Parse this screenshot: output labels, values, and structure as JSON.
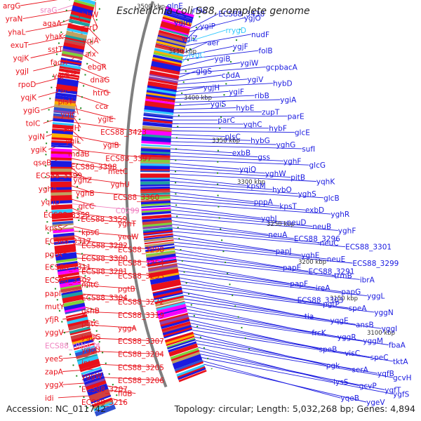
{
  "title": "Escherichia coli S88, complete genome",
  "footer": {
    "accession": "Accession: NC_011742",
    "summary": "Topology: circular; Length: 5,032,268 bp; Genes: 4,894"
  },
  "colors": {
    "background": "#ffffff",
    "reverse_strand": "#e8101a",
    "forward_strand": "#1a1ae0",
    "rna": "#f080c0",
    "trna_forward": "#30c8ff",
    "backbone": "#7f7f7f",
    "tick": "#1e8a1e"
  },
  "scale_ticks": [
    "3500 kbp",
    "3450 kbp",
    "3400 kbp",
    "3350 kbp",
    "3300 kbp",
    "3250 kbp",
    "3200 kbp",
    "3150 kbp",
    "3100 kbp"
  ],
  "left_labels": [
    {
      "text": "argG",
      "type": "gene"
    },
    {
      "text": "sraG",
      "type": "rna"
    },
    {
      "text": "yhbW",
      "type": "gene"
    },
    {
      "text": "yraN",
      "type": "gene"
    },
    {
      "text": "agaA",
      "type": "gene"
    },
    {
      "text": "garD",
      "type": "gene"
    },
    {
      "text": "yhaL",
      "type": "gene"
    },
    {
      "text": "yhaK",
      "type": "gene"
    },
    {
      "text": "yqjA",
      "type": "gene"
    },
    {
      "text": "exuT",
      "type": "gene"
    },
    {
      "text": "sstT",
      "type": "gene"
    },
    {
      "text": "alx",
      "type": "gene"
    },
    {
      "text": "yqjK",
      "type": "gene"
    },
    {
      "text": "fadH",
      "type": "gene"
    },
    {
      "text": "ebgR",
      "type": "gene"
    },
    {
      "text": "ygjI",
      "type": "gene"
    },
    {
      "text": "yqjG",
      "type": "gene"
    },
    {
      "text": "dnaG",
      "type": "gene"
    },
    {
      "text": "rpoD",
      "type": "gene"
    },
    {
      "text": "ygjE",
      "type": "gene"
    },
    {
      "text": "htrG",
      "type": "gene"
    },
    {
      "text": "yqjK",
      "type": "gene"
    },
    {
      "text": "plsY",
      "type": "gene"
    },
    {
      "text": "cca",
      "type": "gene"
    },
    {
      "text": "ygiG",
      "type": "gene"
    },
    {
      "text": "yqiC",
      "type": "gene"
    },
    {
      "text": "ygiE",
      "type": "gene"
    },
    {
      "text": "tolC",
      "type": "gene"
    },
    {
      "text": "yqiH",
      "type": "gene"
    },
    {
      "text": "ECS88_3423",
      "type": "gene"
    },
    {
      "text": "ygiN",
      "type": "gene"
    },
    {
      "text": "ygiL",
      "type": "gene"
    },
    {
      "text": "ygiB",
      "type": "gene"
    },
    {
      "text": "ygiK",
      "type": "gene"
    },
    {
      "text": "mdaB",
      "type": "gene"
    },
    {
      "text": "ECS88_3397",
      "type": "gene"
    },
    {
      "text": "qseB",
      "type": "gene"
    },
    {
      "text": "ECS88_3398",
      "type": "gene"
    },
    {
      "text": "metC",
      "type": "gene"
    },
    {
      "text": "ECS88_3399",
      "type": "gene"
    },
    {
      "text": "yghZ",
      "type": "gene"
    },
    {
      "text": "yghU",
      "type": "gene"
    },
    {
      "text": "yghA",
      "type": "gene"
    },
    {
      "text": "yghB",
      "type": "gene"
    },
    {
      "text": "ECS88_3360",
      "type": "gene"
    },
    {
      "text": "yqhD",
      "type": "gene"
    },
    {
      "text": "glcC",
      "type": "gene"
    },
    {
      "text": "C0299",
      "type": "rna"
    },
    {
      "text": "ECS88_3358",
      "type": "gene"
    },
    {
      "text": "ECS88_3359",
      "type": "gene"
    },
    {
      "text": "yghT",
      "type": "gene"
    },
    {
      "text": "kpsS",
      "type": "gene"
    },
    {
      "text": "kpsC",
      "type": "gene"
    },
    {
      "text": "yeeW",
      "type": "gene"
    },
    {
      "text": "ECS88_3317",
      "type": "gene"
    },
    {
      "text": "ECS88_3282",
      "type": "gene"
    },
    {
      "text": "ECS88_3298",
      "type": "gene"
    },
    {
      "text": "pgtA",
      "type": "gene"
    },
    {
      "text": "ECS88_3300",
      "type": "gene"
    },
    {
      "text": "ECS88_3254",
      "type": "gene"
    },
    {
      "text": "ECS88_3311",
      "type": "gene"
    },
    {
      "text": "ECS88_3281",
      "type": "gene"
    },
    {
      "text": "ECS88_3253",
      "type": "gene"
    },
    {
      "text": "ECS88_3302",
      "type": "gene"
    },
    {
      "text": "mltC",
      "type": "gene"
    },
    {
      "text": "pgtB",
      "type": "gene"
    },
    {
      "text": "papI",
      "type": "gene"
    },
    {
      "text": "ECS88_3304",
      "type": "gene"
    },
    {
      "text": "ECS88_3272",
      "type": "gene"
    },
    {
      "text": "mutY",
      "type": "gene"
    },
    {
      "text": "gshB",
      "type": "gene"
    },
    {
      "text": "ECS88_3319",
      "type": "gene"
    },
    {
      "text": "yfjR",
      "type": "gene"
    },
    {
      "text": "pgtC",
      "type": "gene"
    },
    {
      "text": "yggA",
      "type": "gene"
    },
    {
      "text": "yggV",
      "type": "gene"
    },
    {
      "text": "yggG",
      "type": "gene"
    },
    {
      "text": "ECS88_3307",
      "type": "gene"
    },
    {
      "text": "ECS88_tRNA34",
      "type": "rna"
    },
    {
      "text": "yggU",
      "type": "gene"
    },
    {
      "text": "ECS88_3204",
      "type": "gene"
    },
    {
      "text": "yeeS",
      "type": "gene"
    },
    {
      "text": "int",
      "type": "gene"
    },
    {
      "text": "ECS88_3205",
      "type": "gene"
    },
    {
      "text": "zapA",
      "type": "gene"
    },
    {
      "text": "yggW",
      "type": "gene"
    },
    {
      "text": "ECS88_3206",
      "type": "gene"
    },
    {
      "text": "yggX",
      "type": "gene"
    },
    {
      "text": "ECS88_3207",
      "type": "gene"
    },
    {
      "text": "fldB",
      "type": "gene"
    },
    {
      "text": "idi",
      "type": "gene"
    },
    {
      "text": "ECS88_3216",
      "type": "gene"
    }
  ],
  "right_labels": [
    {
      "text": "glnE",
      "type": "gene"
    },
    {
      "text": "rfaE",
      "type": "gene"
    },
    {
      "text": "ECS88_3438",
      "type": "gene"
    },
    {
      "text": "ygjO",
      "type": "gene"
    },
    {
      "text": "ygjH",
      "type": "gene"
    },
    {
      "text": "ygiP",
      "type": "gene"
    },
    {
      "text": "rrygD",
      "type": "trna"
    },
    {
      "text": "nudF",
      "type": "gene"
    },
    {
      "text": "ygiZ",
      "type": "gene"
    },
    {
      "text": "aer",
      "type": "gene"
    },
    {
      "text": "ygjF",
      "type": "gene"
    },
    {
      "text": "folB",
      "type": "gene"
    },
    {
      "text": "ivgC",
      "type": "trna"
    },
    {
      "text": "ygiB",
      "type": "gene"
    },
    {
      "text": "ygiW",
      "type": "gene"
    },
    {
      "text": "gcpbacA",
      "type": "gene"
    },
    {
      "text": "glgS",
      "type": "gene"
    },
    {
      "text": "cpdA",
      "type": "gene"
    },
    {
      "text": "ygiV",
      "type": "gene"
    },
    {
      "text": "hybD",
      "type": "gene"
    },
    {
      "text": "ygjH",
      "type": "gene"
    },
    {
      "text": "ygiF",
      "type": "gene"
    },
    {
      "text": "ribB",
      "type": "gene"
    },
    {
      "text": "ygiA",
      "type": "gene"
    },
    {
      "text": "ygiS",
      "type": "gene"
    },
    {
      "text": "hybE",
      "type": "gene"
    },
    {
      "text": "zupT",
      "type": "gene"
    },
    {
      "text": "parE",
      "type": "gene"
    },
    {
      "text": "parC",
      "type": "gene"
    },
    {
      "text": "yqhC",
      "type": "gene"
    },
    {
      "text": "hybF",
      "type": "gene"
    },
    {
      "text": "glcE",
      "type": "gene"
    },
    {
      "text": "plsC",
      "type": "gene"
    },
    {
      "text": "hybG",
      "type": "gene"
    },
    {
      "text": "yghG",
      "type": "gene"
    },
    {
      "text": "sufI",
      "type": "gene"
    },
    {
      "text": "exbB",
      "type": "gene"
    },
    {
      "text": "gss",
      "type": "gene"
    },
    {
      "text": "yghF",
      "type": "gene"
    },
    {
      "text": "glcG",
      "type": "gene"
    },
    {
      "text": "yqiQ",
      "type": "gene"
    },
    {
      "text": "yghW",
      "type": "gene"
    },
    {
      "text": "pitB",
      "type": "gene"
    },
    {
      "text": "yqhK",
      "type": "gene"
    },
    {
      "text": "kpsM",
      "type": "gene"
    },
    {
      "text": "hybO",
      "type": "gene"
    },
    {
      "text": "yghS",
      "type": "gene"
    },
    {
      "text": "glcB",
      "type": "gene"
    },
    {
      "text": "pppA",
      "type": "gene"
    },
    {
      "text": "kpsT",
      "type": "gene"
    },
    {
      "text": "exbD",
      "type": "gene"
    },
    {
      "text": "yghR",
      "type": "gene"
    },
    {
      "text": "yghJ",
      "type": "gene"
    },
    {
      "text": "neuD",
      "type": "gene"
    },
    {
      "text": "neuB",
      "type": "gene"
    },
    {
      "text": "yghF",
      "type": "gene"
    },
    {
      "text": "neuA",
      "type": "gene"
    },
    {
      "text": "ECS88_3296",
      "type": "gene"
    },
    {
      "text": "neuC",
      "type": "gene"
    },
    {
      "text": "ECS88_3301",
      "type": "gene"
    },
    {
      "text": "papJ",
      "type": "gene"
    },
    {
      "text": "yghE",
      "type": "gene"
    },
    {
      "text": "neuE",
      "type": "gene"
    },
    {
      "text": "ECS88_3299",
      "type": "gene"
    },
    {
      "text": "papE",
      "type": "gene"
    },
    {
      "text": "ECS88_3291",
      "type": "gene"
    },
    {
      "text": "trmB",
      "type": "gene"
    },
    {
      "text": "ibrA",
      "type": "gene"
    },
    {
      "text": "papF",
      "type": "gene"
    },
    {
      "text": "ireA",
      "type": "gene"
    },
    {
      "text": "papG",
      "type": "gene"
    },
    {
      "text": "yggL",
      "type": "gene"
    },
    {
      "text": "ECS88_3303",
      "type": "gene"
    },
    {
      "text": "pgtP",
      "type": "gene"
    },
    {
      "text": "speA",
      "type": "gene"
    },
    {
      "text": "yggN",
      "type": "gene"
    },
    {
      "text": "tia",
      "type": "gene"
    },
    {
      "text": "yqgE",
      "type": "gene"
    },
    {
      "text": "ansB",
      "type": "gene"
    },
    {
      "text": "yggI",
      "type": "gene"
    },
    {
      "text": "frcK",
      "type": "gene"
    },
    {
      "text": "yggR",
      "type": "gene"
    },
    {
      "text": "yggM",
      "type": "gene"
    },
    {
      "text": "fbaA",
      "type": "gene"
    },
    {
      "text": "speB",
      "type": "gene"
    },
    {
      "text": "visC",
      "type": "gene"
    },
    {
      "text": "speC",
      "type": "gene"
    },
    {
      "text": "tktA",
      "type": "gene"
    },
    {
      "text": "pgk",
      "type": "gene"
    },
    {
      "text": "serA",
      "type": "gene"
    },
    {
      "text": "yqfB",
      "type": "gene"
    },
    {
      "text": "gcvH",
      "type": "gene"
    },
    {
      "text": "lysS",
      "type": "gene"
    },
    {
      "text": "gcvP",
      "type": "gene"
    },
    {
      "text": "ygfT",
      "type": "gene"
    },
    {
      "text": "ygfS",
      "type": "gene"
    },
    {
      "text": "yqeB",
      "type": "gene"
    },
    {
      "text": "ygeV",
      "type": "gene"
    }
  ]
}
